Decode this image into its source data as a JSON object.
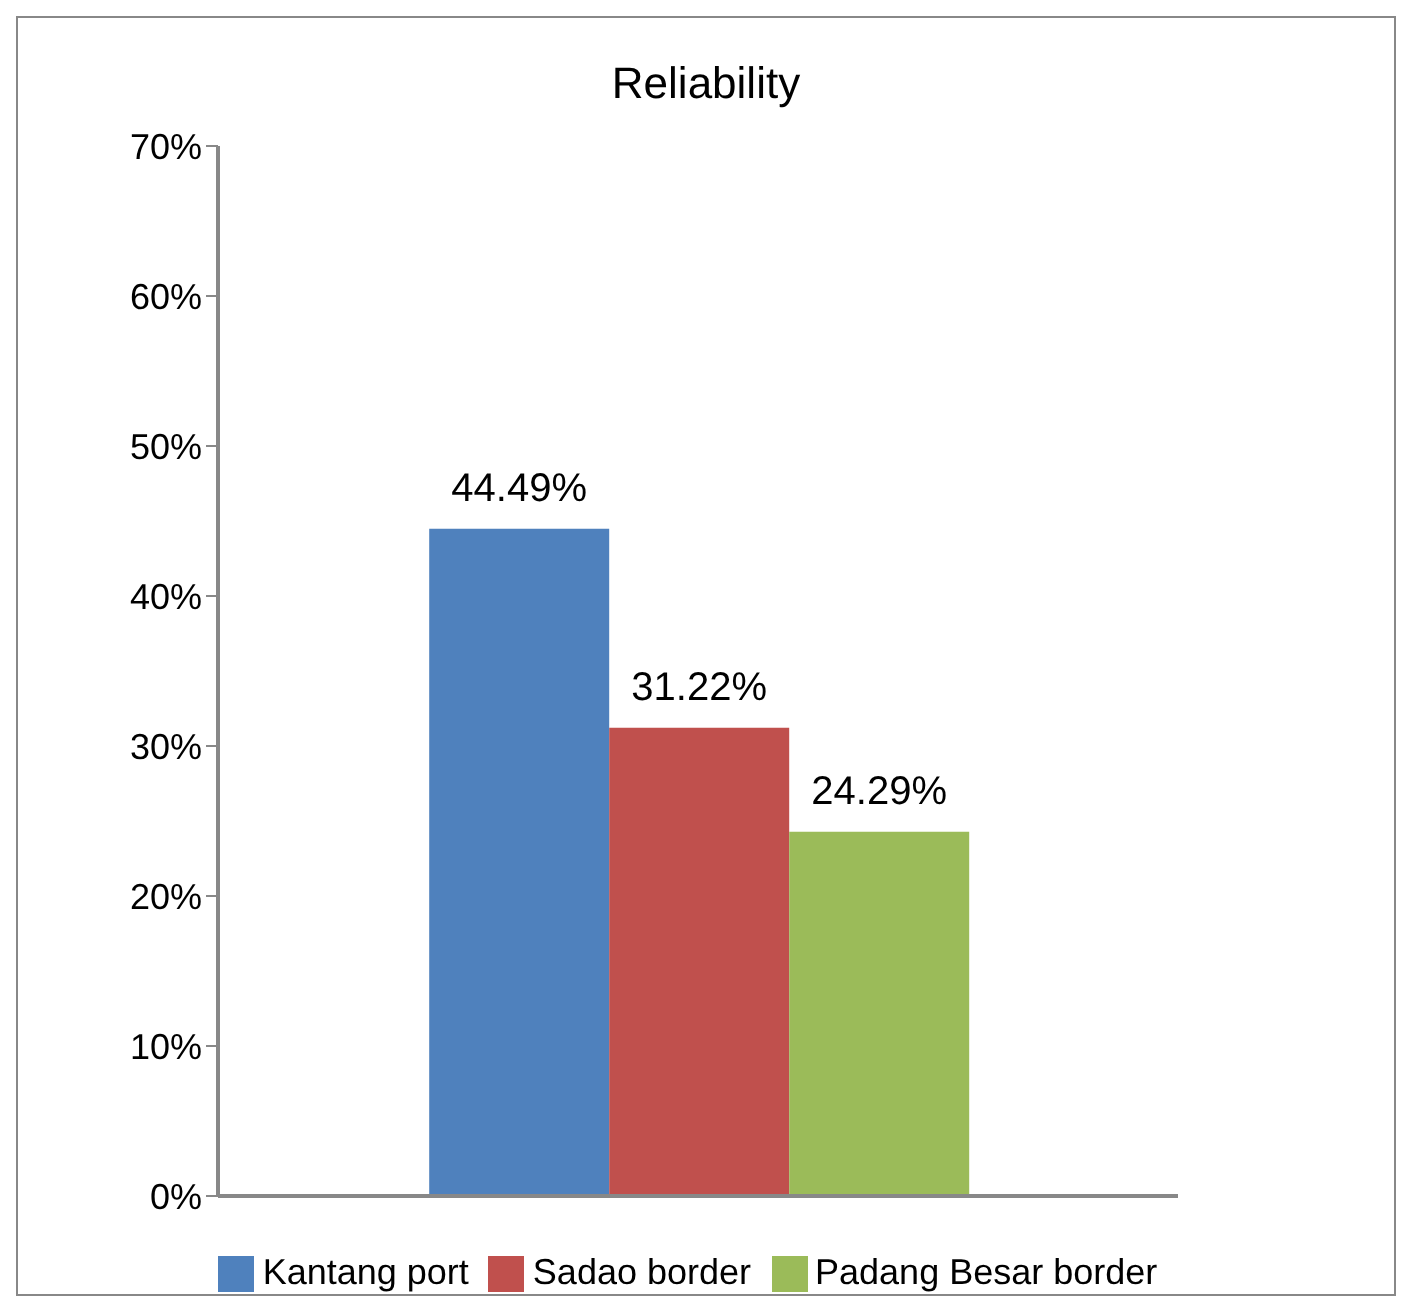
{
  "chart_data": {
    "type": "bar",
    "title": "Reliability",
    "categories": [
      null
    ],
    "series": [
      {
        "name": "Kantang port",
        "color": "#4f81bd",
        "values": [
          44.49
        ],
        "value_labels": [
          "44.49%"
        ]
      },
      {
        "name": "Sadao border",
        "color": "#c0504d",
        "values": [
          31.22
        ],
        "value_labels": [
          "31.22%"
        ]
      },
      {
        "name": "Padang Besar border",
        "color": "#9bbb59",
        "values": [
          24.29
        ],
        "value_labels": [
          "24.29%"
        ]
      }
    ],
    "ylim": [
      0,
      70
    ],
    "yticks": [
      {
        "value": 0,
        "label": "0%"
      },
      {
        "value": 10,
        "label": "10%"
      },
      {
        "value": 20,
        "label": "20%"
      },
      {
        "value": 30,
        "label": "30%"
      },
      {
        "value": 40,
        "label": "40%"
      },
      {
        "value": 50,
        "label": "50%"
      },
      {
        "value": 60,
        "label": "60%"
      },
      {
        "value": 70,
        "label": "70%"
      }
    ],
    "grid": false,
    "legend": "bottom"
  }
}
